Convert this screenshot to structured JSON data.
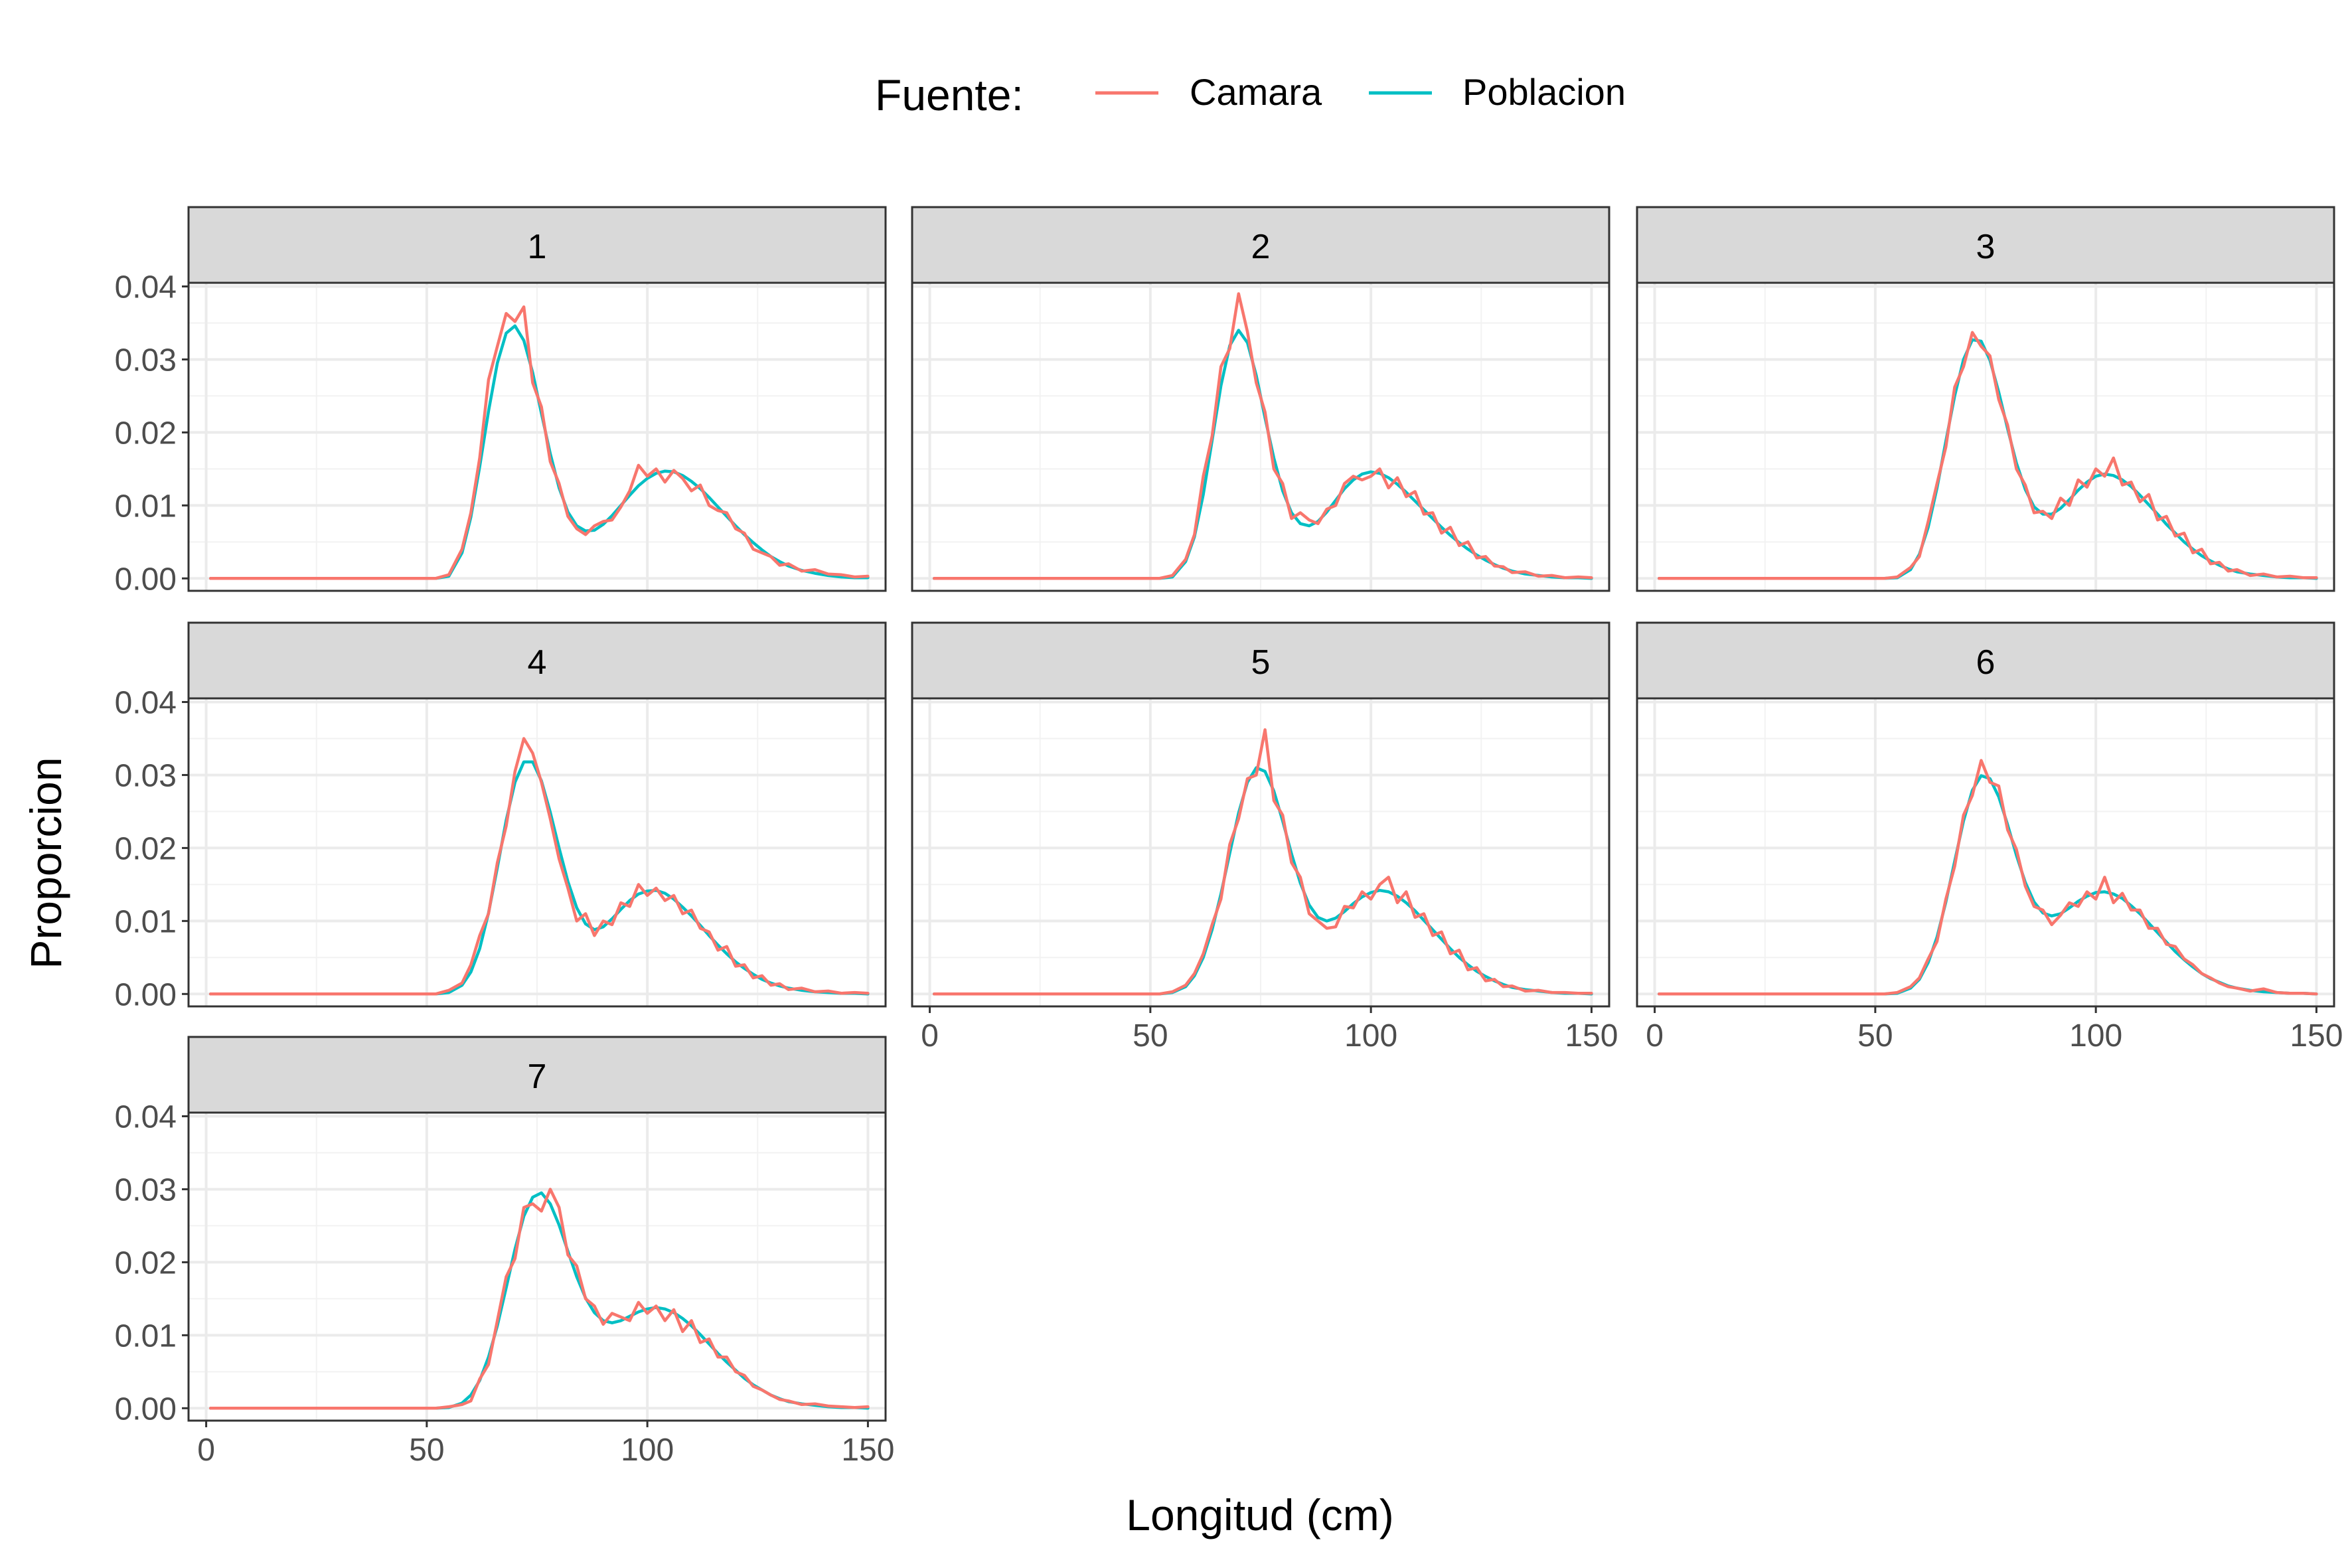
{
  "chart_data": {
    "type": "line",
    "facet_type": "wrap",
    "legend": {
      "title": "Fuente:",
      "position": "top",
      "entries": [
        {
          "name": "Camara",
          "color": "#F8766D"
        },
        {
          "name": "Poblacion",
          "color": "#00BFC4"
        }
      ]
    },
    "xlabel": "Longitud (cm)",
    "ylabel": "Proporcion",
    "xlim": [
      -4,
      154
    ],
    "ylim": [
      -0.0017,
      0.0405
    ],
    "x_ticks": [
      0,
      50,
      100,
      150
    ],
    "x_tick_labels": [
      "0",
      "50",
      "100",
      "150"
    ],
    "y_ticks": [
      0,
      0.01,
      0.02,
      0.03,
      0.04
    ],
    "y_tick_labels": [
      "0.00",
      "0.01",
      "0.02",
      "0.03",
      "0.04"
    ],
    "grid": true,
    "x": [
      1,
      10,
      20,
      30,
      40,
      48,
      52,
      55,
      58,
      60,
      62,
      64,
      66,
      68,
      70,
      72,
      74,
      76,
      78,
      80,
      82,
      84,
      86,
      88,
      90,
      92,
      94,
      96,
      98,
      100,
      102,
      104,
      106,
      108,
      110,
      112,
      114,
      116,
      118,
      120,
      122,
      124,
      126,
      128,
      130,
      132,
      135,
      138,
      141,
      144,
      147,
      150
    ],
    "panels": [
      {
        "label": "1",
        "series": [
          {
            "name": "Poblacion",
            "values": [
              0.0,
              0.0,
              0.0,
              0.0,
              0.0,
              0.0,
              0.0,
              0.0003,
              0.0035,
              0.0084,
              0.0153,
              0.0229,
              0.0295,
              0.0336,
              0.0346,
              0.0326,
              0.0282,
              0.0226,
              0.0171,
              0.0124,
              0.0091,
              0.0072,
              0.0065,
              0.0066,
              0.0074,
              0.0086,
              0.01,
              0.0114,
              0.0127,
              0.0137,
              0.0144,
              0.0147,
              0.0146,
              0.0141,
              0.0133,
              0.0123,
              0.0111,
              0.0098,
              0.0085,
              0.0072,
              0.006,
              0.0049,
              0.0039,
              0.003,
              0.0023,
              0.0017,
              0.0011,
              0.0007,
              0.0004,
              0.0002,
              0.0001,
              0.0001
            ]
          },
          {
            "name": "Camara",
            "values": [
              0.0,
              0.0,
              0.0,
              0.0,
              0.0,
              0.0,
              0.0,
              0.0005,
              0.004,
              0.009,
              0.0165,
              0.0272,
              0.0318,
              0.0363,
              0.0352,
              0.0372,
              0.0268,
              0.0235,
              0.016,
              0.013,
              0.0085,
              0.0068,
              0.006,
              0.0072,
              0.0078,
              0.008,
              0.0098,
              0.012,
              0.0155,
              0.014,
              0.015,
              0.0132,
              0.0148,
              0.0137,
              0.012,
              0.0128,
              0.01,
              0.0093,
              0.009,
              0.0068,
              0.0062,
              0.004,
              0.0035,
              0.003,
              0.0018,
              0.002,
              0.001,
              0.0012,
              0.0006,
              0.0005,
              0.0002,
              0.0003
            ]
          }
        ]
      },
      {
        "label": "2",
        "series": [
          {
            "name": "Poblacion",
            "values": [
              0.0,
              0.0,
              0.0,
              0.0,
              0.0,
              0.0,
              0.0,
              0.0002,
              0.0023,
              0.0057,
              0.0115,
              0.0189,
              0.0264,
              0.0319,
              0.034,
              0.0323,
              0.0278,
              0.022,
              0.0165,
              0.012,
              0.009,
              0.0075,
              0.0072,
              0.0078,
              0.0091,
              0.0107,
              0.0123,
              0.0135,
              0.0143,
              0.0146,
              0.0144,
              0.0138,
              0.0129,
              0.0118,
              0.0106,
              0.0094,
              0.0082,
              0.007,
              0.0059,
              0.0049,
              0.004,
              0.0032,
              0.0025,
              0.0019,
              0.0014,
              0.001,
              0.0006,
              0.0004,
              0.0002,
              0.0001,
              0.0001,
              0.0
            ]
          },
          {
            "name": "Camara",
            "values": [
              0.0,
              0.0,
              0.0,
              0.0,
              0.0,
              0.0,
              0.0,
              0.0004,
              0.0026,
              0.006,
              0.014,
              0.0195,
              0.029,
              0.0315,
              0.039,
              0.0338,
              0.0268,
              0.0228,
              0.015,
              0.013,
              0.0082,
              0.009,
              0.008,
              0.0075,
              0.0095,
              0.01,
              0.013,
              0.014,
              0.0135,
              0.014,
              0.015,
              0.0124,
              0.0138,
              0.0112,
              0.0119,
              0.0088,
              0.009,
              0.0062,
              0.007,
              0.0045,
              0.005,
              0.0028,
              0.003,
              0.0017,
              0.0016,
              0.0008,
              0.0009,
              0.0003,
              0.0004,
              0.0001,
              0.0002,
              0.0001
            ]
          }
        ]
      },
      {
        "label": "3",
        "series": [
          {
            "name": "Poblacion",
            "values": [
              0.0,
              0.0,
              0.0,
              0.0,
              0.0,
              0.0,
              0.0,
              0.0001,
              0.0012,
              0.0033,
              0.007,
              0.0124,
              0.0188,
              0.025,
              0.03,
              0.0327,
              0.0325,
              0.0299,
              0.0255,
              0.0205,
              0.0158,
              0.0122,
              0.0098,
              0.0088,
              0.0088,
              0.0096,
              0.0108,
              0.0121,
              0.0132,
              0.014,
              0.0143,
              0.0141,
              0.0135,
              0.0126,
              0.0114,
              0.0101,
              0.0088,
              0.0074,
              0.0062,
              0.005,
              0.004,
              0.0031,
              0.0024,
              0.0018,
              0.0013,
              0.0009,
              0.0006,
              0.0004,
              0.0002,
              0.0001,
              0.0001,
              0.0
            ]
          },
          {
            "name": "Camara",
            "values": [
              0.0,
              0.0,
              0.0,
              0.0,
              0.0,
              0.0,
              0.0,
              0.0002,
              0.0015,
              0.003,
              0.0078,
              0.013,
              0.018,
              0.0262,
              0.029,
              0.0337,
              0.0318,
              0.0305,
              0.0245,
              0.021,
              0.015,
              0.0128,
              0.009,
              0.0092,
              0.0082,
              0.011,
              0.01,
              0.0135,
              0.0125,
              0.015,
              0.014,
              0.0165,
              0.0128,
              0.0132,
              0.0105,
              0.0115,
              0.008,
              0.0085,
              0.0058,
              0.0062,
              0.0035,
              0.004,
              0.002,
              0.0022,
              0.001,
              0.0012,
              0.0004,
              0.0006,
              0.0002,
              0.0003,
              0.0001,
              0.0001
            ]
          }
        ]
      },
      {
        "label": "4",
        "series": [
          {
            "name": "Poblacion",
            "values": [
              0.0,
              0.0,
              0.0,
              0.0,
              0.0,
              0.0,
              0.0,
              0.0002,
              0.0012,
              0.003,
              0.0062,
              0.0111,
              0.0173,
              0.0238,
              0.029,
              0.0318,
              0.0318,
              0.0292,
              0.0249,
              0.02,
              0.0154,
              0.0118,
              0.0096,
              0.0088,
              0.0092,
              0.0103,
              0.0116,
              0.0128,
              0.0137,
              0.0141,
              0.0142,
              0.0138,
              0.013,
              0.0119,
              0.0107,
              0.0094,
              0.008,
              0.0067,
              0.0055,
              0.0044,
              0.0035,
              0.0027,
              0.002,
              0.0015,
              0.0011,
              0.0008,
              0.0005,
              0.0003,
              0.0002,
              0.0001,
              0.0001,
              0.0
            ]
          },
          {
            "name": "Camara",
            "values": [
              0.0,
              0.0,
              0.0,
              0.0,
              0.0,
              0.0,
              0.0,
              0.0005,
              0.0015,
              0.004,
              0.008,
              0.011,
              0.018,
              0.023,
              0.0305,
              0.035,
              0.033,
              0.029,
              0.024,
              0.0185,
              0.0145,
              0.01,
              0.011,
              0.008,
              0.01,
              0.0095,
              0.0125,
              0.012,
              0.015,
              0.0135,
              0.0145,
              0.0128,
              0.0135,
              0.011,
              0.0115,
              0.009,
              0.0085,
              0.006,
              0.0065,
              0.0038,
              0.004,
              0.0022,
              0.0025,
              0.0012,
              0.0014,
              0.0006,
              0.0008,
              0.0003,
              0.0004,
              0.0001,
              0.0002,
              0.0001
            ]
          }
        ]
      },
      {
        "label": "5",
        "series": [
          {
            "name": "Poblacion",
            "values": [
              0.0,
              0.0,
              0.0,
              0.0,
              0.0,
              0.0,
              0.0,
              0.0002,
              0.001,
              0.0025,
              0.005,
              0.0088,
              0.0137,
              0.0193,
              0.0248,
              0.029,
              0.031,
              0.0305,
              0.0278,
              0.0237,
              0.0192,
              0.0152,
              0.0122,
              0.0105,
              0.01,
              0.0104,
              0.0113,
              0.0124,
              0.0133,
              0.0139,
              0.0142,
              0.014,
              0.0134,
              0.0125,
              0.0114,
              0.0101,
              0.0088,
              0.0075,
              0.0062,
              0.005,
              0.004,
              0.0031,
              0.0024,
              0.0018,
              0.0013,
              0.0009,
              0.0006,
              0.0004,
              0.0002,
              0.0001,
              0.0001,
              0.0
            ]
          },
          {
            "name": "Camara",
            "values": [
              0.0,
              0.0,
              0.0,
              0.0,
              0.0,
              0.0,
              0.0,
              0.0003,
              0.0012,
              0.0028,
              0.0055,
              0.0095,
              0.013,
              0.0205,
              0.024,
              0.0295,
              0.03,
              0.0362,
              0.0265,
              0.0245,
              0.018,
              0.016,
              0.011,
              0.01,
              0.009,
              0.0092,
              0.012,
              0.0118,
              0.014,
              0.013,
              0.015,
              0.016,
              0.0125,
              0.014,
              0.0105,
              0.011,
              0.008,
              0.0085,
              0.0055,
              0.006,
              0.0033,
              0.0036,
              0.0018,
              0.002,
              0.001,
              0.0011,
              0.0004,
              0.0005,
              0.0002,
              0.0002,
              0.0001,
              0.0001
            ]
          }
        ]
      },
      {
        "label": "6",
        "series": [
          {
            "name": "Poblacion",
            "values": [
              0.0,
              0.0,
              0.0,
              0.0,
              0.0,
              0.0,
              0.0,
              0.0001,
              0.0008,
              0.002,
              0.0043,
              0.0078,
              0.0126,
              0.0182,
              0.0237,
              0.0279,
              0.0299,
              0.0295,
              0.027,
              0.0232,
              0.019,
              0.0153,
              0.0126,
              0.0111,
              0.0107,
              0.011,
              0.0118,
              0.0127,
              0.0134,
              0.0139,
              0.014,
              0.0137,
              0.0131,
              0.0121,
              0.011,
              0.0097,
              0.0084,
              0.0071,
              0.0058,
              0.0047,
              0.0037,
              0.0028,
              0.0021,
              0.0016,
              0.0011,
              0.0008,
              0.0005,
              0.0003,
              0.0002,
              0.0001,
              0.0001,
              0.0
            ]
          },
          {
            "name": "Camara",
            "values": [
              0.0,
              0.0,
              0.0,
              0.0,
              0.0,
              0.0,
              0.0,
              0.0002,
              0.001,
              0.0022,
              0.0048,
              0.0072,
              0.013,
              0.0175,
              0.0245,
              0.0272,
              0.032,
              0.029,
              0.0285,
              0.0225,
              0.0198,
              0.0148,
              0.012,
              0.0115,
              0.0095,
              0.0108,
              0.0125,
              0.012,
              0.014,
              0.013,
              0.016,
              0.0125,
              0.0138,
              0.0115,
              0.0115,
              0.009,
              0.009,
              0.0068,
              0.0065,
              0.0048,
              0.004,
              0.0028,
              0.0022,
              0.0015,
              0.001,
              0.0008,
              0.0004,
              0.0007,
              0.0002,
              0.0001,
              0.0001,
              0.0
            ]
          }
        ]
      },
      {
        "label": "7",
        "series": [
          {
            "name": "Poblacion",
            "values": [
              0.0,
              0.0,
              0.0,
              0.0,
              0.0,
              0.0,
              0.0,
              0.0001,
              0.0007,
              0.0018,
              0.0038,
              0.007,
              0.0113,
              0.0165,
              0.0218,
              0.0263,
              0.0289,
              0.0295,
              0.028,
              0.0251,
              0.0215,
              0.018,
              0.0151,
              0.0131,
              0.012,
              0.0117,
              0.012,
              0.0126,
              0.0132,
              0.0136,
              0.0138,
              0.0136,
              0.0131,
              0.0123,
              0.0113,
              0.0101,
              0.0088,
              0.0075,
              0.0063,
              0.0052,
              0.0041,
              0.0032,
              0.0025,
              0.0018,
              0.0013,
              0.0009,
              0.0006,
              0.0004,
              0.0002,
              0.0001,
              0.0001,
              0.0
            ]
          },
          {
            "name": "Camara",
            "values": [
              0.0,
              0.0,
              0.0,
              0.0,
              0.0,
              0.0,
              0.0,
              0.0002,
              0.0005,
              0.001,
              0.004,
              0.006,
              0.012,
              0.018,
              0.0205,
              0.0275,
              0.028,
              0.027,
              0.03,
              0.0275,
              0.021,
              0.0195,
              0.015,
              0.014,
              0.0115,
              0.013,
              0.0125,
              0.012,
              0.0145,
              0.013,
              0.014,
              0.012,
              0.0135,
              0.0105,
              0.012,
              0.009,
              0.0095,
              0.007,
              0.007,
              0.005,
              0.0045,
              0.003,
              0.0025,
              0.0018,
              0.0012,
              0.001,
              0.0005,
              0.0006,
              0.0003,
              0.0002,
              0.0001,
              0.0002
            ]
          }
        ]
      }
    ]
  }
}
